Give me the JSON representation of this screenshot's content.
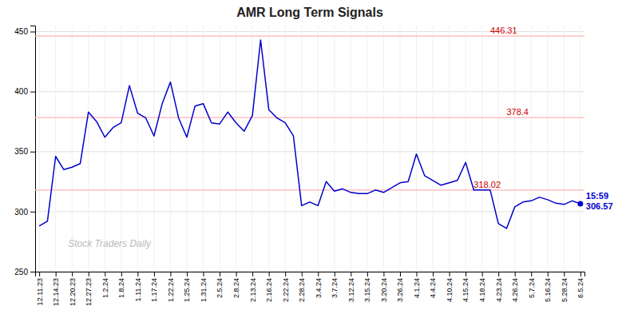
{
  "chart_data": {
    "type": "line",
    "title": "AMR Long Term Signals",
    "categories": [
      "12.11.23",
      null,
      "12.14.23",
      null,
      "12.20.23",
      null,
      "12.27.23",
      null,
      "1.2.24",
      null,
      "1.8.24",
      null,
      "1.11.24",
      null,
      "1.17.24",
      null,
      "1.22.24",
      null,
      "1.25.24",
      null,
      "1.31.24",
      null,
      "2.5.24",
      null,
      "2.8.24",
      null,
      "2.13.24",
      null,
      "2.16.24",
      null,
      "2.22.24",
      null,
      "2.28.24",
      null,
      "3.4.24",
      null,
      "3.7.24",
      null,
      "3.12.24",
      null,
      "3.15.24",
      null,
      "3.20.24",
      null,
      "3.26.24",
      null,
      "4.1.24",
      null,
      "4.4.24",
      null,
      "4.10.24",
      null,
      "4.15.24",
      null,
      "4.18.24",
      null,
      "4.23.24",
      null,
      "4.26.24",
      null,
      "5.7.24",
      null,
      "5.16.24",
      null,
      "5.28.24",
      null,
      "6.5.24"
    ],
    "values": [
      288,
      292,
      346,
      335,
      337,
      340,
      383,
      375,
      362,
      370,
      374,
      405,
      382,
      378,
      363,
      390,
      408,
      378,
      362,
      388,
      390,
      374,
      373,
      383,
      374,
      367,
      380,
      443,
      385,
      378,
      374,
      363,
      305,
      308,
      305,
      325,
      317,
      319,
      316,
      315,
      315,
      318,
      316,
      320,
      324,
      325,
      348,
      330,
      326,
      322,
      324,
      326,
      341,
      318,
      318,
      318,
      290,
      286,
      304,
      308,
      309,
      312,
      310,
      307,
      306,
      309,
      306.57
    ],
    "color": "#0000cc",
    "ylim": [
      250,
      455
    ],
    "yticks": [
      250,
      300,
      350,
      400,
      450
    ],
    "grid": true,
    "hlines": [
      {
        "value": 446.31,
        "color": "#ffb3b3"
      },
      {
        "value": 378.4,
        "color": "#ffb3b3"
      },
      {
        "value": 318.02,
        "color": "#ffb3b3"
      }
    ],
    "annotations": [
      {
        "text": "446.31",
        "x": "4.18.24",
        "y": 446.31,
        "color": "#cc0000"
      },
      {
        "text": "378.4",
        "x": "4.23.24",
        "y": 378.4,
        "color": "#cc0000"
      },
      {
        "text": "318.02",
        "x": "4.15.24",
        "y": 318.02,
        "color": "#cc0000"
      },
      {
        "text": "15:59\n306.57",
        "x": "6.5.24",
        "y": 306.57,
        "color": "#0000cc",
        "marker": "circle"
      }
    ],
    "watermark": "Stock Traders Daily"
  }
}
